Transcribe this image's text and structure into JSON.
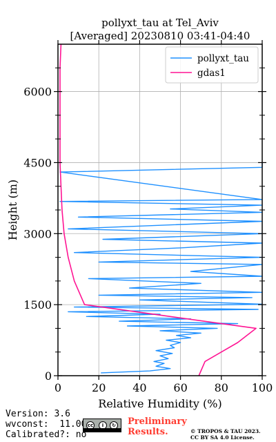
{
  "chart_data": {
    "type": "line",
    "title": "pollyxt_tau at Tel_Aviv",
    "subtitle": "[Averaged] 20230810 03:41-04:40",
    "xlabel": "Relative Humidity (%)",
    "ylabel": "Height (m)",
    "xlim": [
      0,
      100
    ],
    "ylim": [
      0,
      7000
    ],
    "xticks": [
      0,
      20,
      40,
      60,
      80,
      100
    ],
    "yticks": [
      0,
      1500,
      3000,
      4500,
      6000
    ],
    "grid": true,
    "legend_position": "top-right",
    "series": [
      {
        "name": "pollyxt_tau",
        "color": "#1e90ff",
        "style": "noisy-profile",
        "points": [
          [
            21,
            60
          ],
          [
            45,
            100
          ],
          [
            55,
            150
          ],
          [
            48,
            200
          ],
          [
            52,
            260
          ],
          [
            47,
            300
          ],
          [
            54,
            360
          ],
          [
            50,
            420
          ],
          [
            56,
            470
          ],
          [
            48,
            530
          ],
          [
            57,
            590
          ],
          [
            55,
            640
          ],
          [
            60,
            700
          ],
          [
            53,
            750
          ],
          [
            65,
            800
          ],
          [
            58,
            850
          ],
          [
            70,
            900
          ],
          [
            50,
            950
          ],
          [
            78,
            1000
          ],
          [
            34,
            1050
          ],
          [
            88,
            1100
          ],
          [
            30,
            1150
          ],
          [
            65,
            1200
          ],
          [
            14,
            1250
          ],
          [
            50,
            1300
          ],
          [
            5,
            1350
          ],
          [
            98,
            1400
          ],
          [
            8,
            1450
          ],
          [
            100,
            1510
          ],
          [
            40,
            1600
          ],
          [
            95,
            1650
          ],
          [
            20,
            1700
          ],
          [
            100,
            1760
          ],
          [
            35,
            1850
          ],
          [
            70,
            1950
          ],
          [
            15,
            2050
          ],
          [
            100,
            2100
          ],
          [
            65,
            2200
          ],
          [
            100,
            2350
          ],
          [
            20,
            2400
          ],
          [
            100,
            2500
          ],
          [
            8,
            2600
          ],
          [
            60,
            2700
          ],
          [
            100,
            2800
          ],
          [
            22,
            2880
          ],
          [
            100,
            3000
          ],
          [
            5,
            3100
          ],
          [
            100,
            3260
          ],
          [
            10,
            3350
          ],
          [
            100,
            3450
          ],
          [
            55,
            3520
          ],
          [
            100,
            3600
          ],
          [
            1,
            3680
          ],
          [
            100,
            3720
          ],
          [
            1,
            4300
          ],
          [
            100,
            4400
          ],
          [
            100,
            4500
          ]
        ]
      },
      {
        "name": "gdas1",
        "color": "#ff1493",
        "style": "line",
        "points": [
          [
            69,
            0
          ],
          [
            72,
            300
          ],
          [
            80,
            500
          ],
          [
            88,
            700
          ],
          [
            97,
            1000
          ],
          [
            80,
            1100
          ],
          [
            55,
            1250
          ],
          [
            13,
            1500
          ],
          [
            8,
            2000
          ],
          [
            5,
            2500
          ],
          [
            3,
            3000
          ],
          [
            2,
            3500
          ],
          [
            1.5,
            4000
          ],
          [
            1,
            4500
          ],
          [
            1,
            5000
          ],
          [
            1,
            5500
          ],
          [
            1,
            6000
          ],
          [
            1,
            6500
          ],
          [
            1.5,
            7000
          ]
        ]
      }
    ]
  },
  "footer": {
    "version": "Version: 3.6",
    "wvconst": "wvconst:  11.00",
    "calibrated": "Calibrated?: no",
    "preliminary_line1": "Preliminary",
    "preliminary_line2": "Results.",
    "copyright_line1": "© TROPOS & TAU 2023.",
    "copyright_line2": "CC BY SA 4.0 License.",
    "license_icon": "cc-by-sa-badge"
  }
}
